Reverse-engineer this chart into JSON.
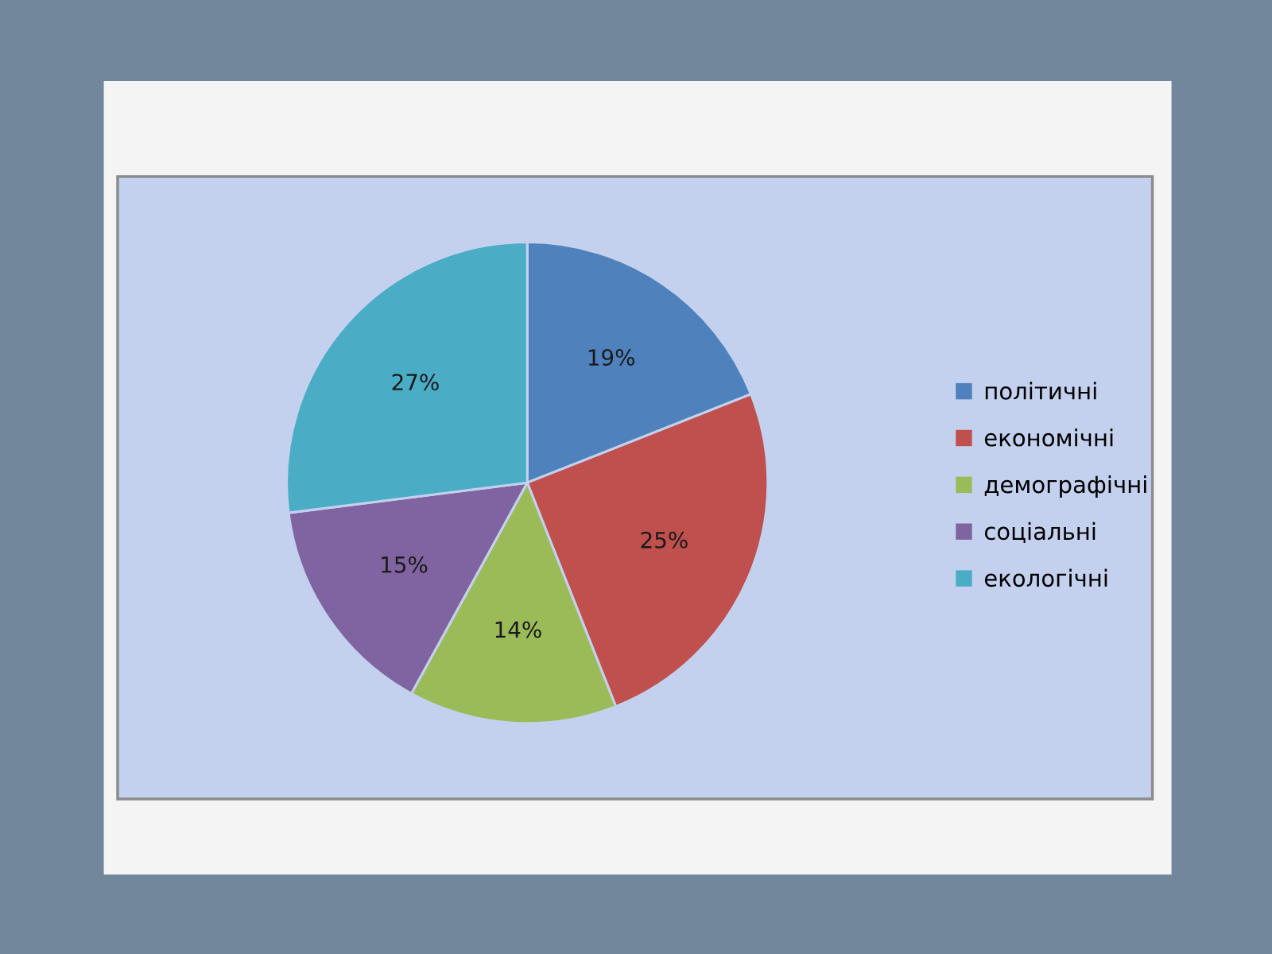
{
  "chart_data": {
    "type": "pie",
    "categories": [
      "політичні",
      "економічні",
      "демографічні",
      "соціальні",
      "екологічні"
    ],
    "values": [
      19,
      25,
      14,
      15,
      27
    ],
    "colors": [
      "#4f81bd",
      "#c0504d",
      "#9bbb59",
      "#8064a2",
      "#4bacc6"
    ],
    "value_labels": [
      "19%",
      "25%",
      "14%",
      "15%",
      "27%"
    ],
    "legend": "right"
  }
}
